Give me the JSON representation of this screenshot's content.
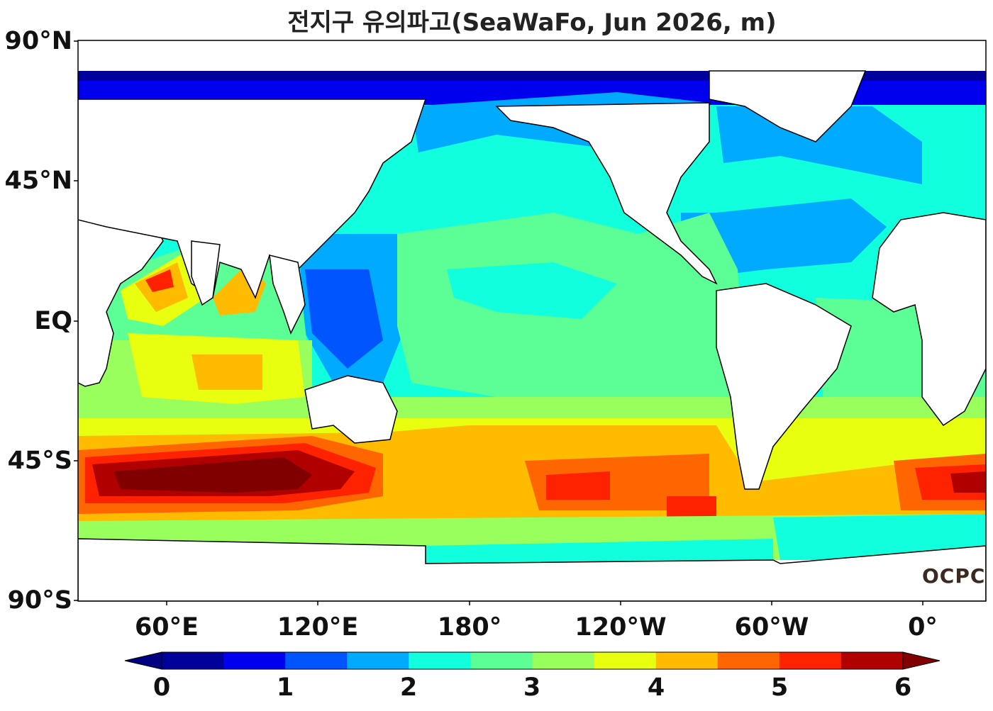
{
  "title": "전지구 유의파고(SeaWaFo, Jun 2026, m)",
  "y_axis_labels": [
    "90°N",
    "45°N",
    "EQ",
    "45°S",
    "90°S"
  ],
  "x_axis_labels": [
    "60°E",
    "120°E",
    "180°",
    "120°W",
    "60°W",
    "0°"
  ],
  "colorbar": {
    "tick_labels": [
      "0",
      "1",
      "2",
      "3",
      "4",
      "5",
      "6"
    ],
    "levels": [
      0,
      0.5,
      1,
      1.5,
      2,
      2.5,
      3,
      3.5,
      4,
      4.5,
      5,
      5.5,
      6
    ],
    "colors": [
      "#00009a",
      "#0000ee",
      "#0055ff",
      "#00aaff",
      "#11ffdd",
      "#5cff96",
      "#99ff5c",
      "#e8ff10",
      "#ffbb00",
      "#ff6600",
      "#ff2200",
      "#b00000"
    ],
    "under_color": "#000080",
    "over_color": "#800000",
    "extend": "both"
  },
  "logo": "OCPC"
}
